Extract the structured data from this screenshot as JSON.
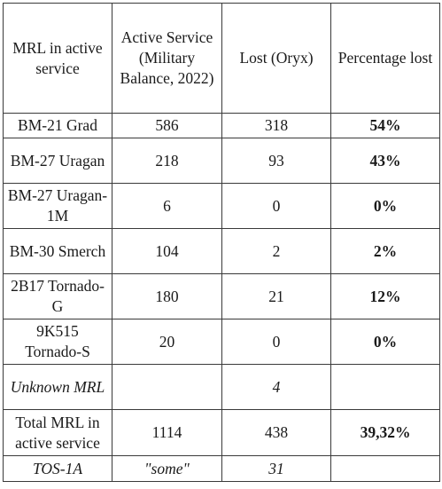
{
  "header": {
    "col1": "MRL in active service",
    "col2": "Active Service (Military Balance, 2022)",
    "col3": "Lost (Oryx)",
    "col4": "Percentage lost"
  },
  "rows": [
    {
      "name": "BM-21 Grad",
      "active": "586",
      "lost": "318",
      "pct": "54%"
    },
    {
      "name": "BM-27 Uragan",
      "active": "218",
      "lost": "93",
      "pct": "43%"
    },
    {
      "name": "BM-27 Uragan-1M",
      "active": "6",
      "lost": "0",
      "pct": "0%"
    },
    {
      "name": "BM-30 Smerch",
      "active": "104",
      "lost": "2",
      "pct": "2%"
    },
    {
      "name": "2B17 Tornado-G",
      "active": "180",
      "lost": "21",
      "pct": "12%"
    },
    {
      "name": "9K515 Tornado-S",
      "active": "20",
      "lost": "0",
      "pct": "0%"
    },
    {
      "name": "Unknown MRL",
      "active": "",
      "lost": "4",
      "pct": ""
    },
    {
      "name": "Total MRL in active service",
      "active": "1114",
      "lost": "438",
      "pct": "39,32%"
    },
    {
      "name": "TOS-1A",
      "active": "\"some\"",
      "lost": "31",
      "pct": ""
    }
  ]
}
